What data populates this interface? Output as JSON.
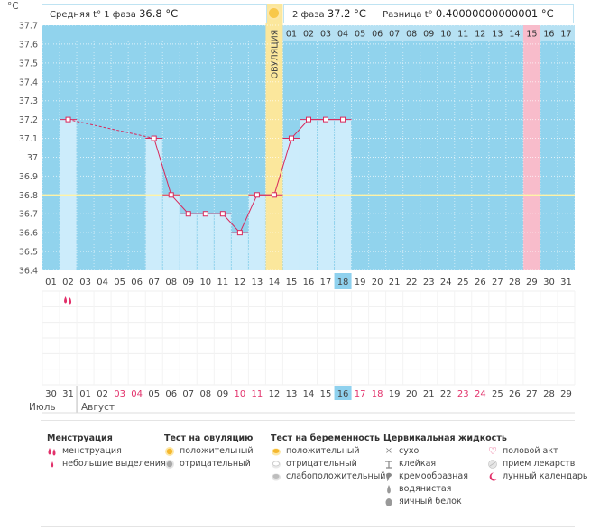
{
  "unit": "°C",
  "stats": {
    "phase1_label": "Средняя t° 1 фаза",
    "phase1_value": "36.8 °C",
    "phase2_label": "2 фаза",
    "phase2_value": "37.2 °C",
    "diff_label": "Разница t°",
    "diff_value": "0.40000000000001 °C"
  },
  "ovulation_label": "ОВУЛЯЦИЯ",
  "colors": {
    "bg_blue": "#91d3ed",
    "bar": "#ccecfb",
    "ovulation": "#fbe79c",
    "pink": "#f8bccb",
    "marker": "#e2306a",
    "line": "#d8295c",
    "accent_cell": "#8fd1ee",
    "red_date": "#e2306a"
  },
  "chart_data": {
    "type": "line",
    "title": "",
    "xlabel": "",
    "ylabel": "°C",
    "ylim": [
      36.4,
      37.7
    ],
    "y_ticks": [
      "36.4",
      "36.5",
      "36.6",
      "36.7",
      "36.8",
      "36.9",
      "37",
      "37.1",
      "37.2",
      "37.3",
      "37.4",
      "37.5",
      "37.6",
      "37.7"
    ],
    "x_cycle_days": [
      "01",
      "02",
      "03",
      "04",
      "05",
      "06",
      "07",
      "08",
      "09",
      "10",
      "11",
      "12",
      "13",
      "14",
      "15",
      "16",
      "17",
      "18",
      "19",
      "20",
      "21",
      "22",
      "23",
      "24",
      "25",
      "26",
      "27",
      "28",
      "29",
      "30",
      "31"
    ],
    "x_dates": [
      "30",
      "31",
      "01",
      "02",
      "03",
      "04",
      "05",
      "06",
      "07",
      "08",
      "09",
      "10",
      "11",
      "12",
      "13",
      "14",
      "15",
      "16",
      "17",
      "18",
      "19",
      "20",
      "21",
      "22",
      "23",
      "24",
      "25",
      "26",
      "27",
      "28",
      "29"
    ],
    "date_red": [
      false,
      false,
      false,
      false,
      true,
      true,
      false,
      false,
      false,
      false,
      false,
      true,
      true,
      false,
      false,
      false,
      false,
      false,
      true,
      true,
      false,
      false,
      false,
      false,
      true,
      true,
      false,
      false,
      false,
      false,
      false
    ],
    "highlight_day_index": 17,
    "ovulation_day_index": 13,
    "pink_day_index": 28,
    "luteal_days": [
      "01",
      "02",
      "03",
      "04",
      "05",
      "06",
      "07",
      "08",
      "09",
      "10",
      "11",
      "12",
      "13",
      "14",
      "15",
      "16",
      "17"
    ],
    "luteal_start_index": 14,
    "luteal_pink_index": 14,
    "coverline": 36.8,
    "temperatures": [
      {
        "day": 2,
        "value": 37.2,
        "dashed_to_next": true
      },
      {
        "day": 7,
        "value": 37.1
      },
      {
        "day": 8,
        "value": 36.8
      },
      {
        "day": 9,
        "value": 36.7
      },
      {
        "day": 10,
        "value": 36.7
      },
      {
        "day": 11,
        "value": 36.7
      },
      {
        "day": 12,
        "value": 36.6
      },
      {
        "day": 13,
        "value": 36.8
      },
      {
        "day": 14,
        "value": 36.8
      },
      {
        "day": 15,
        "value": 37.1
      },
      {
        "day": 16,
        "value": 37.2
      },
      {
        "day": 17,
        "value": 37.2
      },
      {
        "day": 18,
        "value": 37.2
      }
    ],
    "menstruation_days": [
      2
    ]
  },
  "months": {
    "july": "Июль",
    "august": "Август"
  },
  "legend": {
    "menstruation": {
      "title": "Менструация",
      "items": [
        {
          "label": "менструация",
          "icon": "blood-drop-double-icon"
        },
        {
          "label": "небольшие выделения",
          "icon": "blood-drop-small-icon"
        }
      ]
    },
    "ovulation_test": {
      "title": "Тест на овуляцию",
      "items": [
        {
          "label": "положительный",
          "icon": "sun-positive-icon"
        },
        {
          "label": "отрицательный",
          "icon": "sun-negative-icon"
        }
      ]
    },
    "pregnancy_test": {
      "title": "Тест на беременность",
      "items": [
        {
          "label": "положительный",
          "icon": "pregnancy-positive-icon"
        },
        {
          "label": "отрицательный",
          "icon": "pregnancy-negative-icon"
        },
        {
          "label": "слабоположительный",
          "icon": "pregnancy-weak-icon"
        }
      ]
    },
    "cervical": {
      "title": "Цервикальная жидкость",
      "items": [
        {
          "label": "сухо",
          "icon": "cross-icon"
        },
        {
          "label": "клейкая",
          "icon": "sticky-icon"
        },
        {
          "label": "кремообразная",
          "icon": "creamy-icon"
        },
        {
          "label": "водянистая",
          "icon": "watery-icon"
        },
        {
          "label": "яичный белок",
          "icon": "egg-white-icon"
        }
      ]
    },
    "other": {
      "items": [
        {
          "label": "половой акт",
          "icon": "heart-icon"
        },
        {
          "label": "прием лекарств",
          "icon": "pill-icon"
        },
        {
          "label": "лунный календарь",
          "icon": "moon-icon"
        }
      ]
    }
  }
}
